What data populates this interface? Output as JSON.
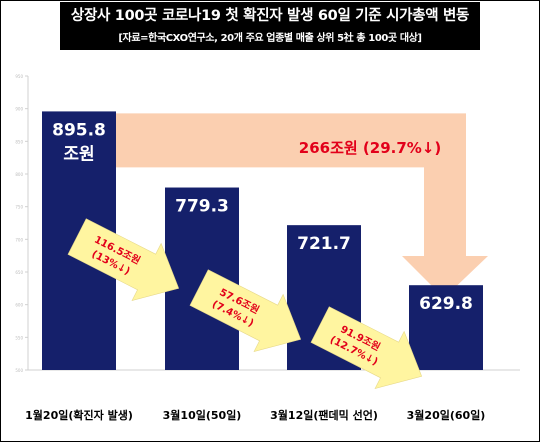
{
  "header": {
    "title": "상장사 100곳 코로나19 첫 확진자 발생 60일 기준 시가총액 변동",
    "subtitle": "[자료=한국CXO연구소, 20개 주요 업종별 매출 상위 5社 총 100곳 대상]"
  },
  "chart_data": {
    "type": "bar",
    "title": "상장사 100곳 코로나19 첫 확진자 발생 60일 기준 시가총액 변동",
    "categories": [
      "1월20일(확진자 발생)",
      "3월10일(50일)",
      "3월12일(팬데믹 선언)",
      "3월20일(60일)"
    ],
    "values": [
      895.8,
      779.3,
      721.7,
      629.8
    ],
    "value_labels": [
      "895.8",
      "779.3",
      "721.7",
      "629.8"
    ],
    "first_value_unit": "조원",
    "ylim": [
      500,
      950
    ],
    "y_ticks": [
      500,
      550,
      600,
      650,
      700,
      750,
      800,
      850,
      900,
      950
    ],
    "grid": false,
    "bar_color": "#15206b",
    "annotations": [
      {
        "lines": [
          "116.5조원",
          "(13%↓)"
        ]
      },
      {
        "lines": [
          "57.6조원",
          "(7.4%↓)"
        ]
      },
      {
        "lines": [
          "91.9조원",
          "(12.7%↓)"
        ]
      }
    ],
    "total_change": "266조원 (29.7%↓)",
    "colors": {
      "step_arrow": "#fff5a0",
      "total_arrow": "#fbcfb0",
      "annotation_text": "#e2001a"
    }
  }
}
